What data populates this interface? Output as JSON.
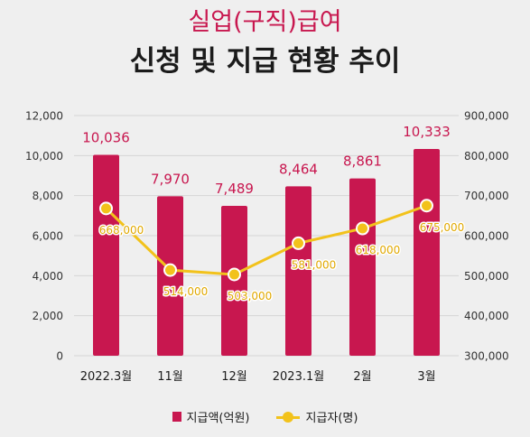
{
  "header": {
    "title_line1": "실업(구직)급여",
    "title_line2": "신청 및 지급 현황 추이"
  },
  "chart_data": {
    "type": "bar",
    "categories": [
      "2022.3월",
      "11월",
      "12월",
      "2023.1월",
      "2월",
      "3월"
    ],
    "series": [
      {
        "name": "지급액(억원)",
        "type": "bar",
        "axis": "left",
        "values": [
          10036,
          7970,
          7489,
          8464,
          8861,
          10333
        ],
        "labels": [
          "10,036",
          "7,970",
          "7,489",
          "8,464",
          "8,861",
          "10,333"
        ],
        "color": "#c8174f"
      },
      {
        "name": "지급자(명)",
        "type": "line",
        "axis": "right",
        "values": [
          668000,
          514000,
          503000,
          581000,
          618000,
          675000
        ],
        "labels": [
          "668,000",
          "514,000",
          "503,000",
          "581,000",
          "618,000",
          "675,000"
        ],
        "color": "#f2c21b"
      }
    ],
    "y_left": {
      "ylim": [
        0,
        12000
      ],
      "ticks": [
        0,
        2000,
        4000,
        6000,
        8000,
        10000,
        12000
      ],
      "tick_labels": [
        "0",
        "2,000",
        "4,000",
        "6,000",
        "8,000",
        "10,000",
        "12,000"
      ]
    },
    "y_right": {
      "ylim": [
        300000,
        900000
      ],
      "ticks": [
        300000,
        400000,
        500000,
        600000,
        700000,
        800000,
        900000
      ],
      "tick_labels": [
        "300,000",
        "400,000",
        "500,000",
        "600,000",
        "700,000",
        "800,000",
        "900,000"
      ]
    },
    "grid": true,
    "legend_position": "bottom"
  }
}
